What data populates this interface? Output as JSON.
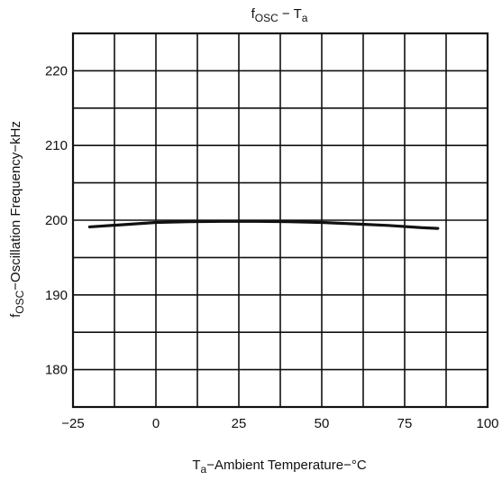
{
  "chart_data": {
    "type": "line",
    "title": "fOSC − Ta",
    "title_parts": {
      "main_base": "f",
      "main_sub": "OSC",
      "dash": " − ",
      "second_base": "T",
      "second_sub": "a"
    },
    "xlabel": "Ta−Ambient Temperature−°C",
    "xlabel_parts": {
      "base": "T",
      "sub": "a",
      "rest": "−Ambient Temperature−°C"
    },
    "ylabel": "fOSC−Oscillation Frequency−kHz",
    "ylabel_parts": {
      "base": "f",
      "sub": "OSC",
      "rest": "−Oscillation Frequency−kHz"
    },
    "xlim": [
      -25,
      100
    ],
    "ylim": [
      175,
      225
    ],
    "grid": true,
    "x_ticks": [
      -25,
      0,
      25,
      50,
      75,
      100
    ],
    "x_tick_labels": [
      "−25",
      "0",
      "25",
      "50",
      "75",
      "100"
    ],
    "y_ticks": [
      180,
      190,
      200,
      210,
      220
    ],
    "y_tick_labels": [
      "180",
      "190",
      "200",
      "210",
      "220"
    ],
    "series": [
      {
        "x": [
          -20,
          -10,
          0,
          10,
          20,
          30,
          40,
          50,
          60,
          70,
          80,
          85
        ],
        "y": [
          199.1,
          199.4,
          199.7,
          199.8,
          199.85,
          199.85,
          199.8,
          199.7,
          199.5,
          199.3,
          199.0,
          198.9
        ]
      }
    ]
  }
}
